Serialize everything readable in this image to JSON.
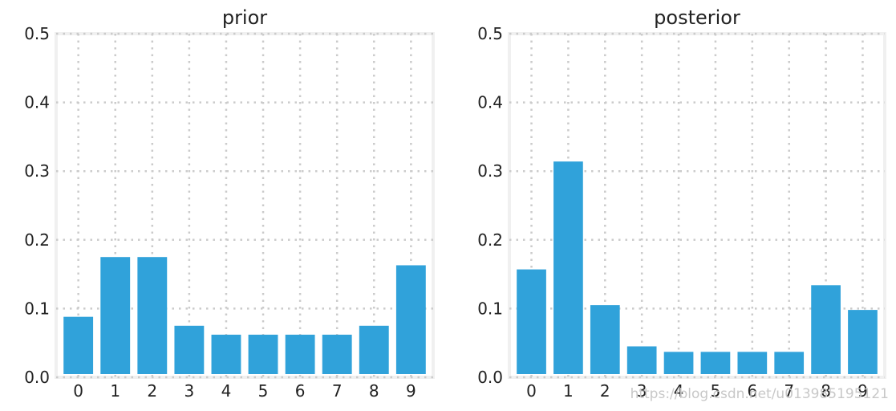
{
  "chart_data": [
    {
      "type": "bar",
      "title": "prior",
      "categories": [
        "0",
        "1",
        "2",
        "3",
        "4",
        "5",
        "6",
        "7",
        "8",
        "9"
      ],
      "values": [
        0.088,
        0.175,
        0.175,
        0.075,
        0.062,
        0.062,
        0.062,
        0.062,
        0.075,
        0.163
      ],
      "ylim": [
        0,
        0.5
      ],
      "yticks": [
        "0.0",
        "0.1",
        "0.2",
        "0.3",
        "0.4",
        "0.5"
      ],
      "grid": true,
      "bar_color": "#30a2da"
    },
    {
      "type": "bar",
      "title": "posterior",
      "categories": [
        "0",
        "1",
        "2",
        "3",
        "4",
        "5",
        "6",
        "7",
        "8",
        "9"
      ],
      "values": [
        0.157,
        0.314,
        0.105,
        0.045,
        0.037,
        0.037,
        0.037,
        0.037,
        0.134,
        0.098
      ],
      "ylim": [
        0,
        0.5
      ],
      "yticks": [
        "0.0",
        "0.1",
        "0.2",
        "0.3",
        "0.4",
        "0.5"
      ],
      "grid": true,
      "bar_color": "#30a2da"
    }
  ],
  "watermark": "https://blog.csdn.net/u013985195121",
  "colors": {
    "bar": "#30a2da",
    "grid": "#cbcbcb",
    "frame": "#f0f0f0"
  }
}
